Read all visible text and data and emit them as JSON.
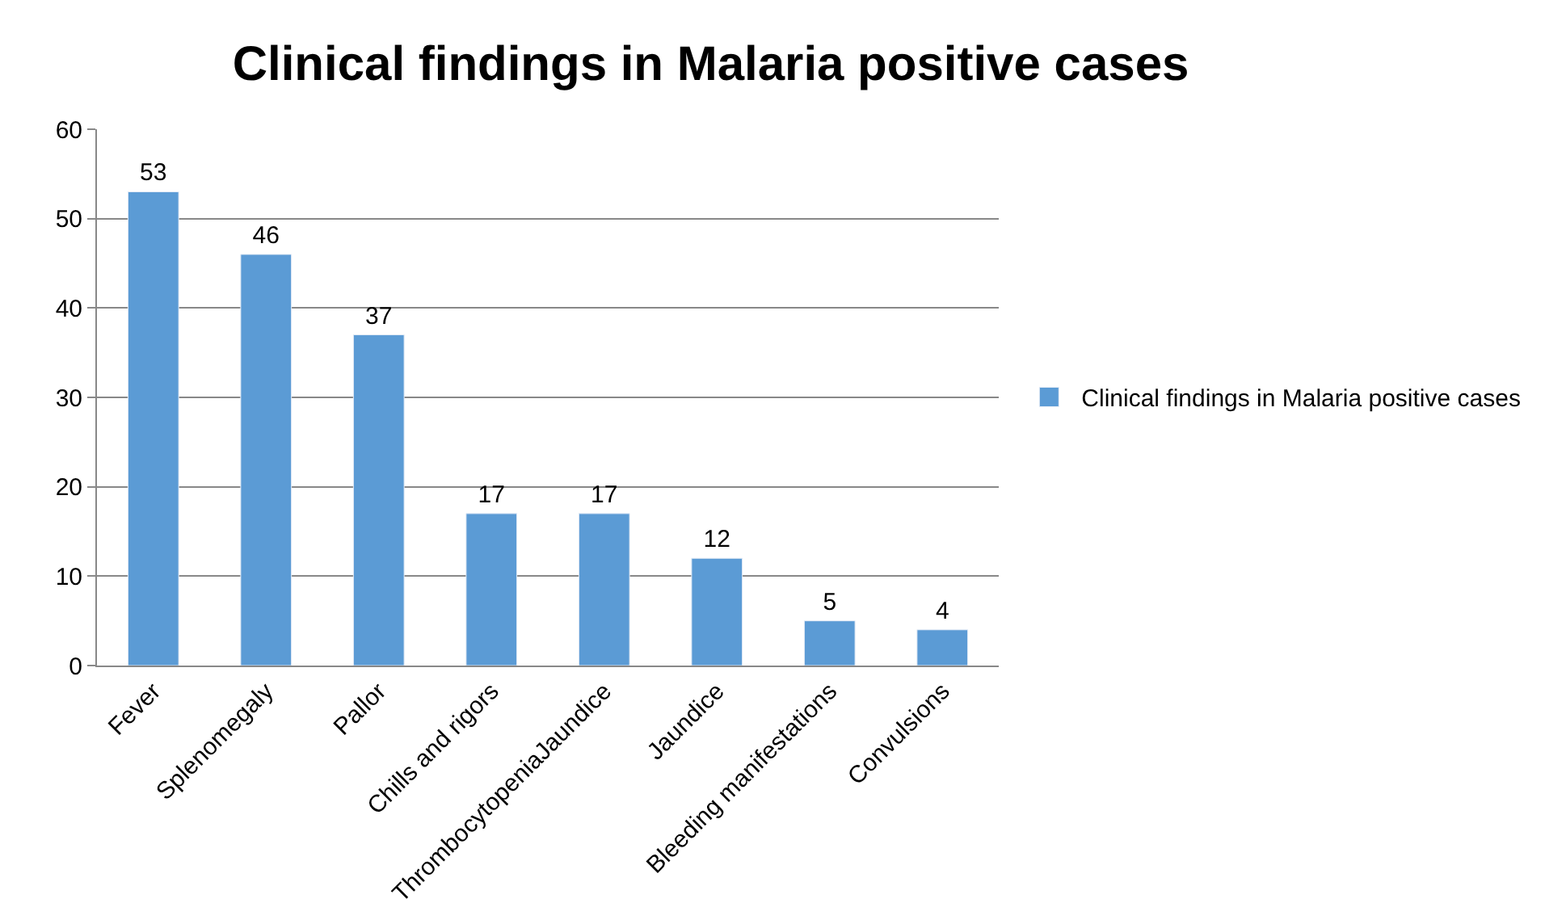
{
  "chart_data": {
    "type": "bar",
    "title": "Clinical findings in Malaria positive cases",
    "categories": [
      "Fever",
      "Splenomegaly",
      "Pallor",
      "Chills and rigors",
      "ThrombocytopeniaJaundice",
      "Jaundice",
      "Bleeding manifestations",
      "Convulsions"
    ],
    "series": [
      {
        "name": "Clinical findings in Malaria positive cases",
        "color": "#5b9bd5",
        "values": [
          53,
          46,
          37,
          17,
          17,
          12,
          5,
          4
        ]
      }
    ],
    "ylim": [
      0,
      60
    ],
    "yticks": [
      0,
      10,
      20,
      30,
      40,
      50,
      60
    ],
    "grid": "y",
    "data_labels": true,
    "legend": "right"
  }
}
